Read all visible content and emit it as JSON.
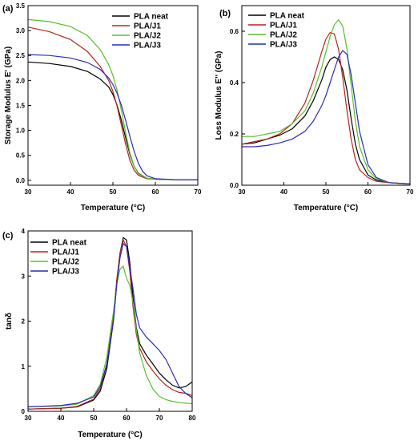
{
  "figure": {
    "colors": {
      "PLA neat": "#000000",
      "PLA/J1": "#b0261c",
      "PLA/J2": "#56c02b",
      "PLA/J3": "#2a2ab8"
    }
  },
  "chart_data": [
    {
      "id": "a",
      "panel_label": "(a)",
      "type": "line",
      "xlabel": "Temperature (°C)",
      "ylabel": "Storage Modulus E' (GPa)",
      "xlim": [
        30,
        70
      ],
      "ylim": [
        -0.1,
        3.5
      ],
      "xticks": [
        30,
        40,
        50,
        60,
        70
      ],
      "yticks": [
        0.0,
        0.5,
        1.0,
        1.5,
        2.0,
        2.5,
        3.0,
        3.5
      ],
      "ytick_labels": [
        "0.0",
        "0.5",
        "1.0",
        "1.5",
        "2.0",
        "2.5",
        "3.0",
        "3.5"
      ],
      "legend_position": "top-right",
      "series": [
        {
          "name": "PLA neat",
          "x": [
            30,
            35,
            40,
            44,
            47,
            49,
            50,
            51,
            52,
            53,
            54,
            55,
            56,
            58,
            60,
            65,
            70
          ],
          "y": [
            2.37,
            2.34,
            2.28,
            2.18,
            2.03,
            1.87,
            1.72,
            1.5,
            1.2,
            0.85,
            0.52,
            0.28,
            0.14,
            0.04,
            0.02,
            0.01,
            0.01
          ]
        },
        {
          "name": "PLA/J1",
          "x": [
            30,
            35,
            40,
            44,
            47,
            49,
            50,
            51,
            52,
            53,
            54,
            55,
            56,
            58,
            60,
            65,
            70
          ],
          "y": [
            3.07,
            2.98,
            2.82,
            2.58,
            2.28,
            2.0,
            1.78,
            1.48,
            1.1,
            0.72,
            0.4,
            0.2,
            0.1,
            0.03,
            0.02,
            0.01,
            0.01
          ]
        },
        {
          "name": "PLA/J2",
          "x": [
            30,
            35,
            40,
            44,
            47,
            49,
            50,
            51,
            52,
            53,
            54,
            55,
            56,
            58,
            60,
            65,
            70
          ],
          "y": [
            3.22,
            3.18,
            3.08,
            2.9,
            2.62,
            2.32,
            2.1,
            1.8,
            1.4,
            0.95,
            0.55,
            0.28,
            0.13,
            0.04,
            0.02,
            0.01,
            0.01
          ]
        },
        {
          "name": "PLA/J3",
          "x": [
            30,
            35,
            40,
            44,
            47,
            49,
            50,
            51,
            52,
            53,
            54,
            55,
            56,
            57,
            58,
            60,
            65,
            70
          ],
          "y": [
            2.52,
            2.5,
            2.45,
            2.36,
            2.22,
            2.05,
            1.92,
            1.74,
            1.5,
            1.2,
            0.88,
            0.58,
            0.34,
            0.18,
            0.09,
            0.03,
            0.01,
            0.01
          ]
        }
      ]
    },
    {
      "id": "b",
      "panel_label": "(b)",
      "type": "line",
      "xlabel": "Temperature (°C)",
      "ylabel": "Loss Modulus E'' (GPa)",
      "xlim": [
        30,
        70
      ],
      "ylim": [
        0.0,
        0.7
      ],
      "xticks": [
        30,
        40,
        50,
        60,
        70
      ],
      "yticks": [
        0.0,
        0.2,
        0.4,
        0.6
      ],
      "ytick_labels": [
        "0.0",
        "0.2",
        "0.4",
        "0.6"
      ],
      "legend_position": "top-left",
      "series": [
        {
          "name": "PLA neat",
          "x": [
            30,
            33,
            36,
            39,
            42,
            45,
            47,
            49,
            50,
            51,
            52,
            53,
            54,
            55,
            56,
            57,
            58,
            60,
            62,
            65,
            70
          ],
          "y": [
            0.16,
            0.165,
            0.18,
            0.195,
            0.22,
            0.27,
            0.33,
            0.41,
            0.46,
            0.49,
            0.5,
            0.49,
            0.45,
            0.37,
            0.26,
            0.16,
            0.1,
            0.04,
            0.02,
            0.01,
            0.005
          ]
        },
        {
          "name": "PLA/J1",
          "x": [
            30,
            33,
            36,
            39,
            42,
            45,
            47,
            49,
            50,
            51,
            52,
            53,
            54,
            55,
            56,
            57,
            58,
            60,
            62,
            65,
            70
          ],
          "y": [
            0.16,
            0.17,
            0.18,
            0.2,
            0.24,
            0.32,
            0.41,
            0.52,
            0.57,
            0.595,
            0.59,
            0.53,
            0.42,
            0.29,
            0.18,
            0.1,
            0.06,
            0.03,
            0.015,
            0.01,
            0.005
          ]
        },
        {
          "name": "PLA/J2",
          "x": [
            30,
            33,
            36,
            39,
            42,
            45,
            47,
            49,
            50,
            51,
            52,
            53,
            54,
            55,
            56,
            57,
            58,
            60,
            62,
            65,
            70
          ],
          "y": [
            0.19,
            0.19,
            0.2,
            0.21,
            0.24,
            0.29,
            0.36,
            0.46,
            0.52,
            0.58,
            0.625,
            0.645,
            0.62,
            0.53,
            0.39,
            0.25,
            0.15,
            0.06,
            0.025,
            0.01,
            0.005
          ]
        },
        {
          "name": "PLA/J3",
          "x": [
            30,
            33,
            36,
            39,
            42,
            45,
            47,
            49,
            50,
            51,
            52,
            53,
            54,
            55,
            56,
            57,
            58,
            60,
            62,
            65,
            70
          ],
          "y": [
            0.15,
            0.15,
            0.155,
            0.165,
            0.18,
            0.21,
            0.25,
            0.31,
            0.35,
            0.4,
            0.45,
            0.5,
            0.525,
            0.51,
            0.43,
            0.32,
            0.21,
            0.08,
            0.03,
            0.01,
            0.005
          ]
        }
      ]
    },
    {
      "id": "c",
      "panel_label": "(c)",
      "type": "line",
      "xlabel": "Temperature (°C)",
      "ylabel": "tanδ",
      "xlim": [
        30,
        80
      ],
      "ylim": [
        0,
        4
      ],
      "xticks": [
        30,
        40,
        50,
        60,
        70,
        80
      ],
      "yticks": [
        0,
        1,
        2,
        3,
        4
      ],
      "ytick_labels": [
        "0",
        "1",
        "2",
        "3",
        "4"
      ],
      "legend_position": "top-left",
      "series": [
        {
          "name": "PLA neat",
          "x": [
            30,
            40,
            45,
            50,
            52,
            54,
            56,
            57,
            58,
            59,
            60,
            61,
            62,
            63,
            64,
            66,
            68,
            70,
            72,
            74,
            76,
            78,
            80
          ],
          "y": [
            0.05,
            0.07,
            0.1,
            0.25,
            0.45,
            0.95,
            2.0,
            2.8,
            3.5,
            3.85,
            3.8,
            3.3,
            2.5,
            1.85,
            1.5,
            1.25,
            1.05,
            0.85,
            0.7,
            0.58,
            0.52,
            0.55,
            0.65
          ]
        },
        {
          "name": "PLA/J1",
          "x": [
            30,
            40,
            45,
            50,
            52,
            54,
            56,
            57,
            58,
            59,
            60,
            61,
            62,
            63,
            64,
            66,
            68,
            70,
            72,
            74,
            76,
            78,
            80
          ],
          "y": [
            0.05,
            0.07,
            0.11,
            0.27,
            0.5,
            1.05,
            2.1,
            2.9,
            3.5,
            3.8,
            3.65,
            3.1,
            2.3,
            1.7,
            1.4,
            1.1,
            0.9,
            0.72,
            0.58,
            0.48,
            0.42,
            0.4,
            0.35
          ]
        },
        {
          "name": "PLA/J2",
          "x": [
            30,
            40,
            45,
            50,
            52,
            54,
            56,
            57,
            58,
            59,
            60,
            61,
            62,
            63,
            64,
            66,
            68,
            70,
            72,
            74,
            76,
            78,
            80
          ],
          "y": [
            0.1,
            0.12,
            0.16,
            0.35,
            0.6,
            1.2,
            2.2,
            2.8,
            3.15,
            3.22,
            2.95,
            2.8,
            2.4,
            1.8,
            1.3,
            0.8,
            0.5,
            0.33,
            0.26,
            0.22,
            0.2,
            0.18,
            0.17
          ]
        },
        {
          "name": "PLA/J3",
          "x": [
            30,
            40,
            45,
            50,
            52,
            54,
            56,
            57,
            58,
            59,
            60,
            61,
            62,
            63,
            64,
            66,
            68,
            70,
            72,
            74,
            76,
            78,
            80
          ],
          "y": [
            0.1,
            0.13,
            0.18,
            0.32,
            0.55,
            1.05,
            2.0,
            2.8,
            3.4,
            3.72,
            3.65,
            3.2,
            2.7,
            2.15,
            1.85,
            1.65,
            1.5,
            1.35,
            1.15,
            0.85,
            0.55,
            0.4,
            0.3
          ]
        }
      ]
    }
  ]
}
